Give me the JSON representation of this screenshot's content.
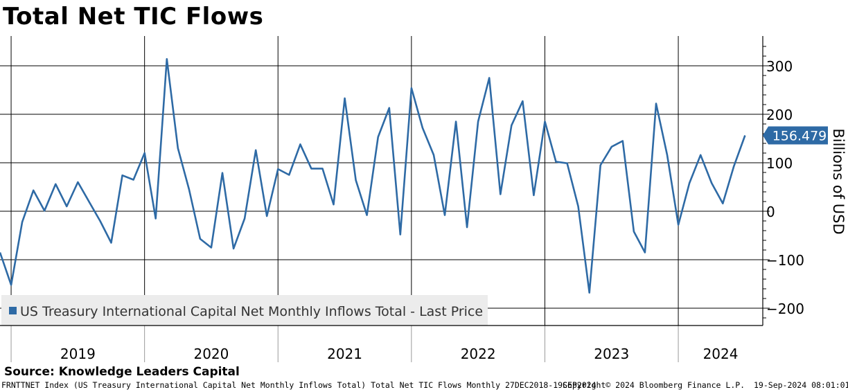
{
  "title": "Total Net TIC Flows",
  "source": "Source: Knowledge Leaders Capital",
  "footer": {
    "description": "FRNTTNET Index (US Treasury International Capital Net Monthly Inflows Total) Total Net TIC Flows  Monthly 27DEC2018-19SEP2024",
    "copyright": "Copyright© 2024 Bloomberg Finance L.P.",
    "timestamp": "19-Sep-2024 08:01:01"
  },
  "colors": {
    "series": "#2e6aa5",
    "last_price_tag": "#2e6aa5",
    "legend_bg": "#ececec",
    "grid": "#000000"
  },
  "chart_data": {
    "type": "line",
    "title": "Total Net TIC Flows",
    "ylabel": "Billions of USD",
    "ylim": [
      -237,
      356
    ],
    "yticks": [
      -200,
      -100,
      0,
      100,
      200,
      300
    ],
    "grid": true,
    "legend": {
      "position": "bottom-left",
      "entries": [
        "US Treasury International Capital Net Monthly Inflows Total - Last Price"
      ]
    },
    "x_year_labels": [
      "2019",
      "2020",
      "2021",
      "2022",
      "2023",
      "2024"
    ],
    "last_value_label": "156.479",
    "series": [
      {
        "name": "US Treasury International Capital Net Monthly Inflows Total - Last Price",
        "start": "2018-12",
        "values": [
          -85,
          -152,
          -22,
          43,
          1,
          56,
          10,
          60,
          20,
          -20,
          -65,
          74,
          65,
          120,
          -15,
          314,
          130,
          45,
          -57,
          -75,
          79,
          -77,
          -15,
          126,
          -10,
          87,
          75,
          138,
          88,
          88,
          14,
          233,
          64,
          -8,
          153,
          213,
          -48,
          254,
          172,
          116,
          -8,
          185,
          -33,
          185,
          275,
          35,
          177,
          227,
          33,
          185,
          102,
          99,
          10,
          -168,
          95,
          133,
          145,
          -42,
          -85,
          222,
          116,
          -28,
          58,
          116,
          58,
          16,
          93,
          156.479
        ]
      }
    ]
  }
}
